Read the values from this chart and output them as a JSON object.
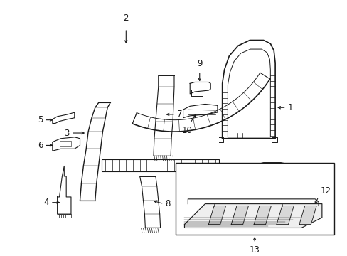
{
  "bg_color": "#ffffff",
  "line_color": "#1a1a1a",
  "fig_width": 4.89,
  "fig_height": 3.6,
  "dpi": 100,
  "label_fontsize": 8.5
}
